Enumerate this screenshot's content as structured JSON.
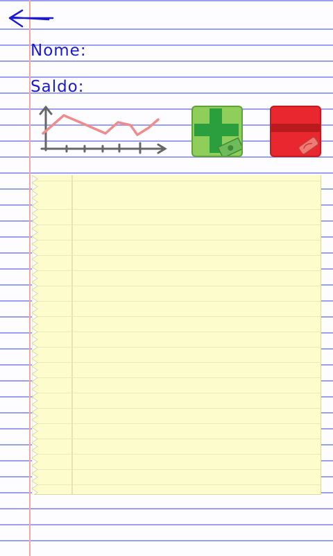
{
  "header": {
    "back_icon": "back-arrow-icon"
  },
  "account": {
    "name_label": "Nome:",
    "balance_label": "Saldo:"
  },
  "actions": {
    "chart_icon": "line-chart-icon",
    "add_icon": "add-money-icon",
    "remove_icon": "remove-money-icon"
  },
  "colors": {
    "ink_blue": "#1a1ad6",
    "rule_blue": "#9b9ff0",
    "margin_red": "#f2a7a7",
    "add_green": "#8fce5a",
    "remove_red": "#e8282e",
    "notepad_yellow": "#fdfccc"
  },
  "notepad": {
    "entries": []
  }
}
